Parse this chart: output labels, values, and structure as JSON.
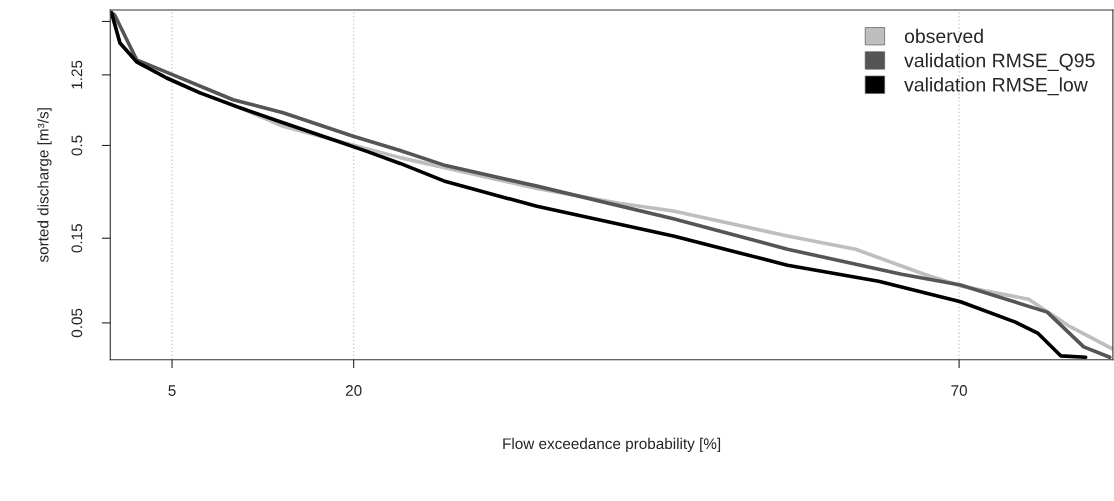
{
  "chart_data": {
    "type": "line",
    "xlabel": "Flow exceedance probability [%]",
    "ylabel": "sorted discharge [m³/s]",
    "log": "y",
    "xlim": [
      -0.1,
      82.7
    ],
    "xticks": [
      5,
      20,
      70
    ],
    "ylim": [
      0.031,
      2.9
    ],
    "yticks": [
      0.05,
      0.15,
      0.5,
      1.25,
      {
        "value": 2.5,
        "label": null
      }
    ],
    "grid": "x",
    "legend": "top right",
    "series": [
      {
        "name": "observed",
        "color": "#bebebe",
        "x": [
          0,
          0.7,
          2.08,
          4.56,
          7.31,
          10.62,
          14.17,
          18.31,
          23.84,
          35.13,
          41.91,
          46.4,
          55.83,
          61.45,
          67.12,
          70.12,
          75.74,
          79.17,
          82.7
        ],
        "values": [
          2.8,
          1.89,
          1.48,
          1.2,
          0.99,
          0.815,
          0.641,
          0.539,
          0.427,
          0.286,
          0.236,
          0.2136,
          0.1545,
          0.13,
          0.094,
          0.0808,
          0.068,
          0.0476,
          0.0356
        ]
      },
      {
        "name": "validation RMSE_Q95",
        "color": "#555555",
        "x": [
          0,
          0.26,
          2.08,
          5.08,
          10.04,
          14.17,
          19.96,
          23.84,
          27.6,
          35.13,
          46.4,
          55.83,
          65.25,
          70.12,
          77.28,
          80.29,
          82.44
        ],
        "values": [
          2.8,
          2.72,
          1.52,
          1.25,
          0.905,
          0.764,
          0.563,
          0.468,
          0.385,
          0.295,
          0.193,
          0.13,
          0.094,
          0.0818,
          0.0575,
          0.0366,
          0.032
        ]
      },
      {
        "name": "validation RMSE_low",
        "color": "#000000",
        "x": [
          0,
          0.7,
          2.08,
          4.56,
          7.31,
          10.62,
          14.17,
          18.31,
          21.09,
          23.84,
          27.6,
          35.13,
          46.4,
          55.83,
          63.35,
          70.12,
          74.65,
          76.53,
          78.39,
          80.45
        ],
        "values": [
          2.8,
          1.89,
          1.48,
          1.2,
          0.99,
          0.815,
          0.672,
          0.539,
          0.463,
          0.396,
          0.313,
          0.227,
          0.1545,
          0.1056,
          0.0859,
          0.0658,
          0.0505,
          0.0436,
          0.0326,
          0.032
        ]
      }
    ]
  }
}
